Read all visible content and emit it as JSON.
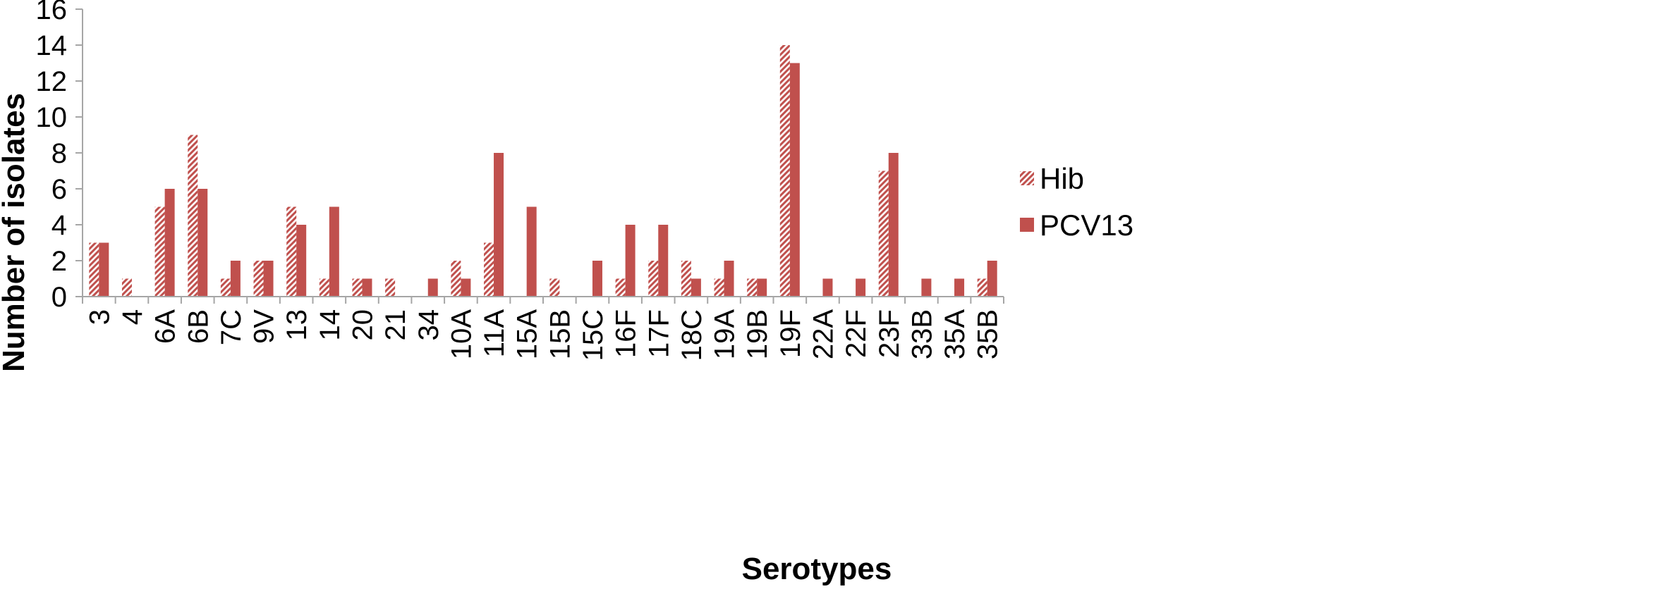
{
  "chart_data": {
    "type": "bar",
    "title": "",
    "xlabel": "Serotypes",
    "ylabel": "Number of isolates",
    "ylim": [
      0,
      16
    ],
    "yticks": [
      0,
      2,
      4,
      6,
      8,
      10,
      12,
      14,
      16
    ],
    "grid": false,
    "legend_position": "right",
    "categories": [
      "3",
      "4",
      "6A",
      "6B",
      "7C",
      "9V",
      "13",
      "14",
      "20",
      "21",
      "34",
      "10A",
      "11A",
      "15A",
      "15B",
      "15C",
      "16F",
      "17F",
      "18C",
      "19A",
      "19B",
      "19F",
      "22A",
      "22F",
      "23F",
      "33B",
      "35A",
      "35B"
    ],
    "series": [
      {
        "name": "Hib",
        "pattern": "diagonal-hatch",
        "color": "#c0504d",
        "values": [
          3,
          1,
          5,
          9,
          1,
          2,
          5,
          1,
          1,
          1,
          0,
          2,
          3,
          0,
          1,
          0,
          1,
          2,
          2,
          1,
          1,
          14,
          0,
          0,
          7,
          0,
          0,
          1
        ]
      },
      {
        "name": "PCV13",
        "pattern": "solid",
        "color": "#c0504d",
        "values": [
          3,
          0,
          6,
          6,
          2,
          2,
          4,
          5,
          1,
          0,
          1,
          1,
          8,
          5,
          0,
          2,
          4,
          4,
          1,
          2,
          1,
          13,
          1,
          1,
          8,
          1,
          1,
          2
        ]
      }
    ]
  }
}
